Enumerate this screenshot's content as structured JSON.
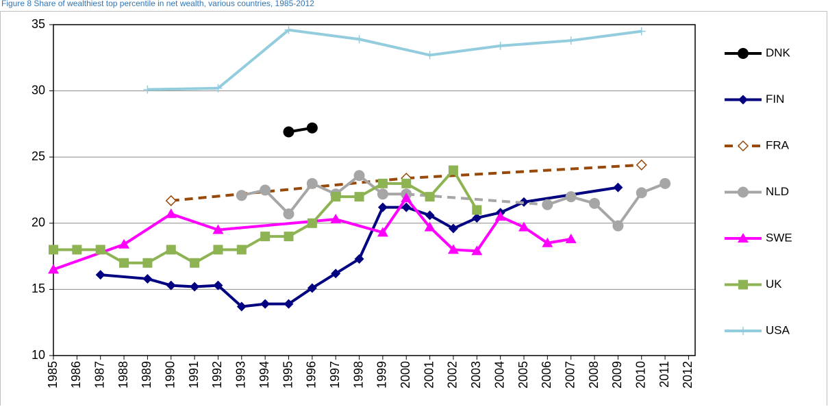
{
  "chart_data": {
    "type": "line",
    "title": "Figure 8 Share of wealthiest top percentile in net wealth, various countries, 1985-2012",
    "categories": [
      1985,
      1986,
      1987,
      1988,
      1989,
      1990,
      1991,
      1992,
      1993,
      1994,
      1995,
      1996,
      1997,
      1998,
      1999,
      2000,
      2001,
      2002,
      2003,
      2004,
      2005,
      2006,
      2007,
      2008,
      2009,
      2010,
      2011,
      2012
    ],
    "ylim": [
      10,
      35
    ],
    "yticks": [
      10,
      15,
      20,
      25,
      30,
      35
    ],
    "grid": true,
    "legend": "right",
    "series": [
      {
        "name": "DNK",
        "color": "#000000",
        "marker": "circle",
        "dashed": false,
        "gap_style": "solid",
        "values": [
          null,
          null,
          null,
          null,
          null,
          null,
          null,
          null,
          null,
          null,
          26.9,
          27.2,
          null,
          null,
          null,
          null,
          null,
          null,
          null,
          null,
          null,
          null,
          null,
          null,
          null,
          null,
          null,
          null
        ]
      },
      {
        "name": "FIN",
        "color": "#000080",
        "marker": "diamond",
        "dashed": false,
        "gap_style": "solid",
        "values": [
          null,
          null,
          16.1,
          null,
          15.8,
          15.3,
          15.2,
          15.3,
          13.7,
          13.9,
          13.9,
          15.1,
          16.2,
          17.3,
          21.2,
          21.2,
          20.6,
          19.6,
          20.4,
          20.8,
          21.6,
          null,
          null,
          null,
          22.7,
          null,
          null,
          null
        ]
      },
      {
        "name": "FRA",
        "color": "#984807",
        "marker": "diamond-open",
        "dashed": true,
        "gap_style": "dashed",
        "values": [
          null,
          null,
          null,
          null,
          null,
          21.7,
          null,
          null,
          null,
          null,
          null,
          null,
          null,
          null,
          null,
          23.4,
          null,
          null,
          null,
          null,
          null,
          null,
          null,
          null,
          null,
          24.4,
          null,
          null
        ]
      },
      {
        "name": "NLD",
        "color": "#a6a6a6",
        "marker": "circle",
        "dashed": false,
        "gap_style": "dashed",
        "values": [
          null,
          null,
          null,
          null,
          null,
          null,
          null,
          null,
          22.1,
          22.5,
          20.7,
          23.0,
          22.2,
          23.6,
          22.2,
          22.2,
          null,
          null,
          null,
          null,
          null,
          21.4,
          22.0,
          21.5,
          19.8,
          22.3,
          23.0,
          null
        ]
      },
      {
        "name": "SWE",
        "color": "#ff00ff",
        "marker": "triangle",
        "dashed": false,
        "gap_style": "solid",
        "values": [
          16.5,
          null,
          null,
          18.4,
          null,
          20.7,
          null,
          19.5,
          null,
          null,
          null,
          null,
          20.3,
          null,
          19.3,
          21.9,
          19.7,
          18.0,
          17.9,
          20.5,
          19.7,
          18.5,
          18.8,
          null,
          null,
          null,
          null,
          null
        ]
      },
      {
        "name": "UK",
        "color": "#8db353",
        "marker": "square",
        "dashed": false,
        "gap_style": "solid",
        "values": [
          18,
          18,
          18,
          17,
          17,
          18,
          17,
          18,
          18,
          19,
          19,
          20,
          22,
          22,
          23,
          23,
          22,
          24,
          21,
          null,
          null,
          null,
          null,
          null,
          null,
          null,
          null,
          null
        ]
      },
      {
        "name": "USA",
        "color": "#93cddd",
        "marker": "plus",
        "dashed": false,
        "gap_style": "solid",
        "values": [
          null,
          null,
          null,
          null,
          30.1,
          null,
          null,
          30.2,
          null,
          null,
          34.6,
          null,
          null,
          33.9,
          null,
          null,
          32.7,
          null,
          null,
          33.4,
          null,
          null,
          33.8,
          null,
          null,
          34.5,
          null,
          null
        ]
      }
    ]
  }
}
